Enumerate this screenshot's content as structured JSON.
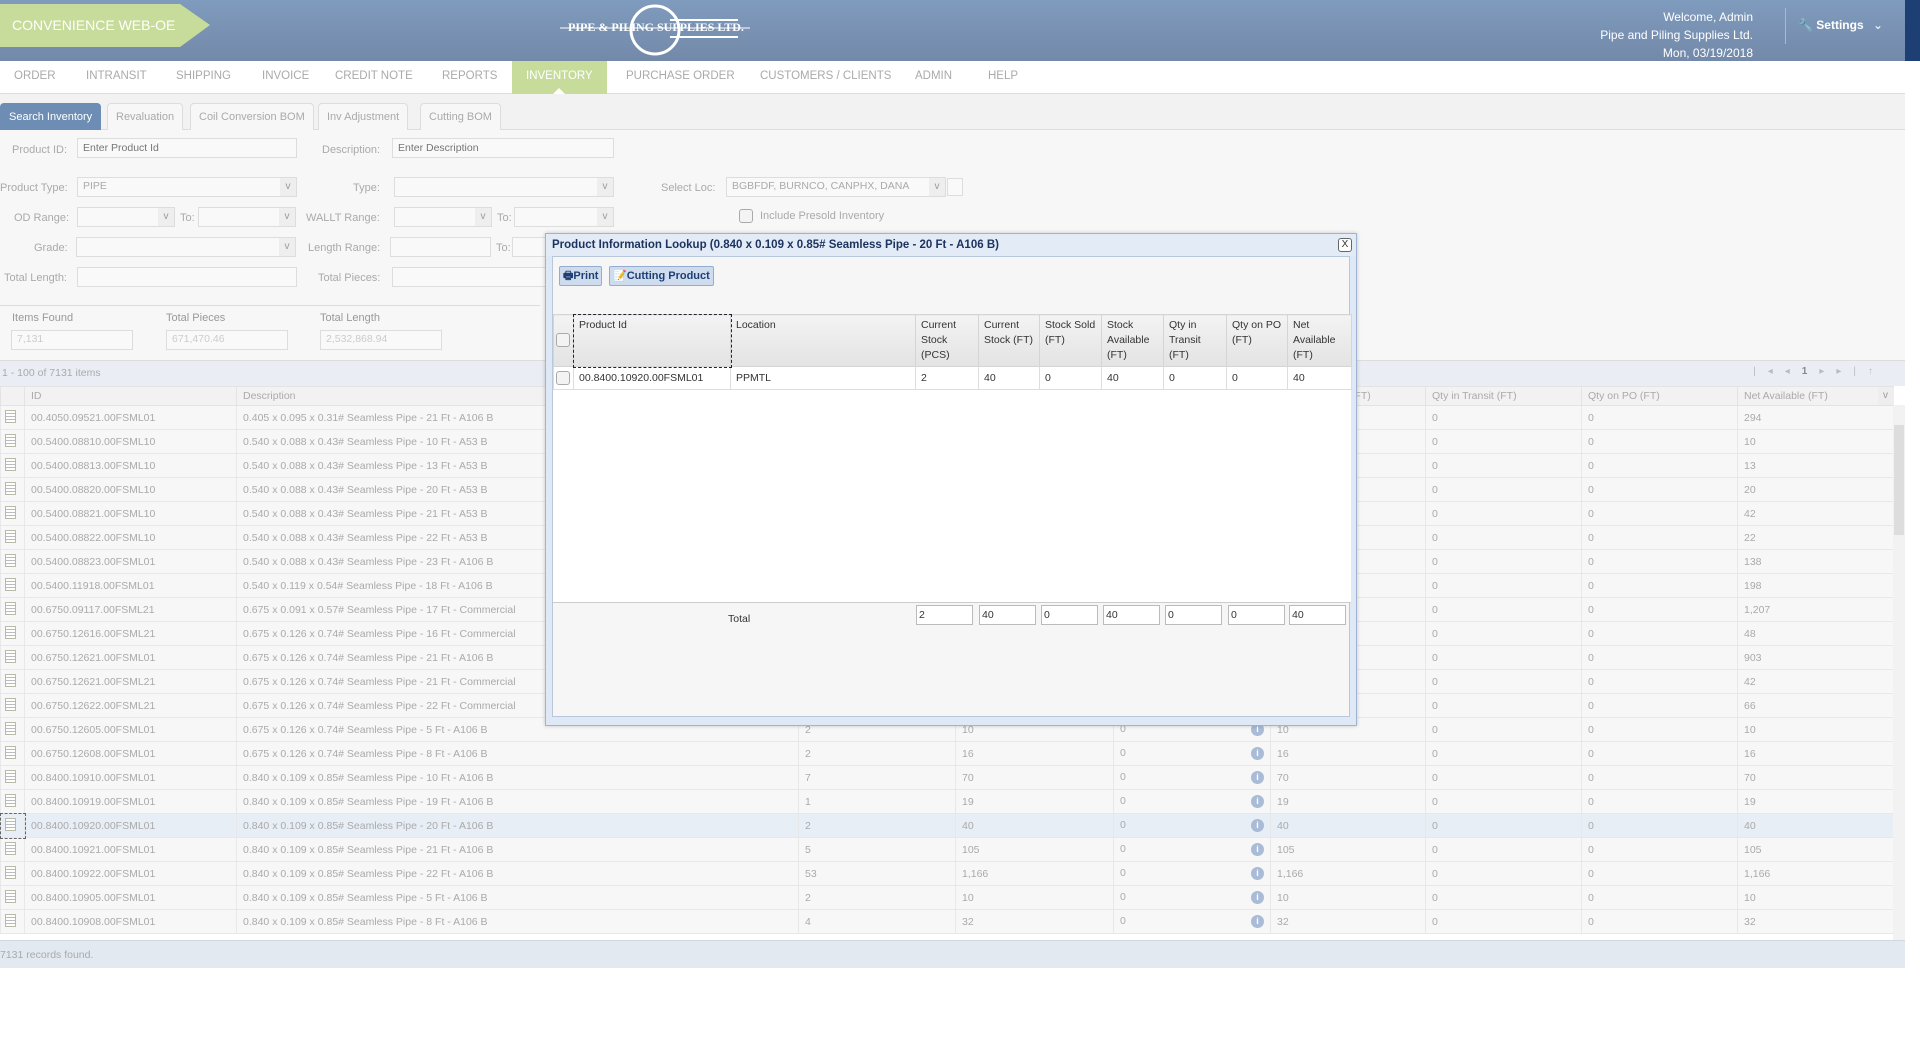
{
  "header": {
    "app_name": "CONVENIENCE WEB-OE",
    "logo_text": "PIPE & PILING SUPPLIES LTD.",
    "welcome": "Welcome, Admin",
    "company": "Pipe and Piling Supplies Ltd.",
    "date": "Mon, 03/19/2018",
    "settings_label": "Settings"
  },
  "nav": [
    "ORDER",
    "INTRANSIT",
    "SHIPPING",
    "INVOICE",
    "CREDIT NOTE",
    "REPORTS",
    "INVENTORY",
    "PURCHASE ORDER",
    "CUSTOMERS / CLIENTS",
    "ADMIN",
    "HELP"
  ],
  "nav_active": "INVENTORY",
  "subtabs": [
    "Search Inventory",
    "Revaluation",
    "Coil Conversion BOM",
    "Inv Adjustment",
    "Cutting BOM"
  ],
  "form": {
    "product_id_label": "Product ID:",
    "product_id_placeholder": "Enter Product Id",
    "description_label": "Description:",
    "description_placeholder": "Enter Description",
    "product_type_label": "Product Type:",
    "product_type_value": "PIPE",
    "type_label": "Type:",
    "select_loc_label": "Select Loc:",
    "select_loc_value": "BGBFDF,  BURNCO,  CANPHX,  DANA",
    "od_range_label": "OD Range:",
    "to_label": "To:",
    "wallt_range_label": "WALLT Range:",
    "include_presold_label": "Include Presold Inventory",
    "grade_label": "Grade:",
    "length_range_label": "Length Range:",
    "total_length_label": "Total Length:",
    "total_pieces_label": "Total Pieces:"
  },
  "summary": {
    "items_found_label": "Items Found",
    "items_found": "7,131",
    "total_pieces_label": "Total Pieces",
    "total_pieces": "671,470.46",
    "total_length_label": "Total Length",
    "total_length": "2,532,868.94"
  },
  "grid": {
    "range_info": "1 - 100 of 7131 items",
    "current_page": "1",
    "footer": "7131 records found.",
    "columns": [
      "ID",
      "Description",
      "Current Stock (PCS)",
      "Current Stock (FT)",
      "Stock Sold (FT)",
      "Stock Available (FT)",
      "Qty in Transit (FT)",
      "Qty on PO (FT)",
      "Net Available (FT)"
    ],
    "rows": [
      {
        "id": "00.4050.09521.00FSML01",
        "desc": "0.405 x 0.095 x 0.31# Seamless Pipe - 21 Ft - A106 B",
        "pcs": "",
        "ft": "",
        "sold": "",
        "avail": "",
        "transit": "0",
        "po": "0",
        "net": "294"
      },
      {
        "id": "00.5400.08810.00FSML10",
        "desc": "0.540 x 0.088 x 0.43# Seamless Pipe - 10 Ft - A53 B",
        "pcs": "",
        "ft": "",
        "sold": "",
        "avail": "",
        "transit": "0",
        "po": "0",
        "net": "10"
      },
      {
        "id": "00.5400.08813.00FSML10",
        "desc": "0.540 x 0.088 x 0.43# Seamless Pipe - 13 Ft - A53 B",
        "pcs": "",
        "ft": "",
        "sold": "",
        "avail": "",
        "transit": "0",
        "po": "0",
        "net": "13"
      },
      {
        "id": "00.5400.08820.00FSML10",
        "desc": "0.540 x 0.088 x 0.43# Seamless Pipe - 20 Ft - A53 B",
        "pcs": "",
        "ft": "",
        "sold": "",
        "avail": "",
        "transit": "0",
        "po": "0",
        "net": "20"
      },
      {
        "id": "00.5400.08821.00FSML10",
        "desc": "0.540 x 0.088 x 0.43# Seamless Pipe - 21 Ft - A53 B",
        "pcs": "",
        "ft": "",
        "sold": "",
        "avail": "",
        "transit": "0",
        "po": "0",
        "net": "42"
      },
      {
        "id": "00.5400.08822.00FSML10",
        "desc": "0.540 x 0.088 x 0.43# Seamless Pipe - 22 Ft - A53 B",
        "pcs": "",
        "ft": "",
        "sold": "",
        "avail": "",
        "transit": "0",
        "po": "0",
        "net": "22"
      },
      {
        "id": "00.5400.08823.00FSML01",
        "desc": "0.540 x 0.088 x 0.43# Seamless Pipe - 23 Ft - A106 B",
        "pcs": "",
        "ft": "",
        "sold": "",
        "avail": "",
        "transit": "0",
        "po": "0",
        "net": "138"
      },
      {
        "id": "00.5400.11918.00FSML01",
        "desc": "0.540 x 0.119 x 0.54# Seamless Pipe - 18 Ft - A106 B",
        "pcs": "",
        "ft": "",
        "sold": "",
        "avail": "",
        "transit": "0",
        "po": "0",
        "net": "198"
      },
      {
        "id": "00.6750.09117.00FSML21",
        "desc": "0.675 x 0.091 x 0.57# Seamless Pipe - 17 Ft - Commercial",
        "pcs": "",
        "ft": "",
        "sold": "",
        "avail": "",
        "transit": "0",
        "po": "0",
        "net": "1,207"
      },
      {
        "id": "00.6750.12616.00FSML21",
        "desc": "0.675 x 0.126 x 0.74# Seamless Pipe - 16 Ft - Commercial",
        "pcs": "",
        "ft": "",
        "sold": "",
        "avail": "",
        "transit": "0",
        "po": "0",
        "net": "48"
      },
      {
        "id": "00.6750.12621.00FSML01",
        "desc": "0.675 x 0.126 x 0.74# Seamless Pipe - 21 Ft - A106 B",
        "pcs": "",
        "ft": "",
        "sold": "",
        "avail": "",
        "transit": "0",
        "po": "0",
        "net": "903"
      },
      {
        "id": "00.6750.12621.00FSML21",
        "desc": "0.675 x 0.126 x 0.74# Seamless Pipe - 21 Ft - Commercial",
        "pcs": "",
        "ft": "",
        "sold": "",
        "avail": "",
        "transit": "0",
        "po": "0",
        "net": "42"
      },
      {
        "id": "00.6750.12622.00FSML21",
        "desc": "0.675 x 0.126 x 0.74# Seamless Pipe - 22 Ft - Commercial",
        "pcs": "",
        "ft": "",
        "sold": "",
        "avail": "",
        "transit": "0",
        "po": "0",
        "net": "66"
      },
      {
        "id": "00.6750.12605.00FSML01",
        "desc": "0.675 x 0.126 x 0.74# Seamless Pipe - 5 Ft - A106 B",
        "pcs": "2",
        "ft": "10",
        "sold": "0",
        "avail": "10",
        "transit": "0",
        "po": "0",
        "net": "10"
      },
      {
        "id": "00.6750.12608.00FSML01",
        "desc": "0.675 x 0.126 x 0.74# Seamless Pipe - 8 Ft - A106 B",
        "pcs": "2",
        "ft": "16",
        "sold": "0",
        "avail": "16",
        "transit": "0",
        "po": "0",
        "net": "16"
      },
      {
        "id": "00.8400.10910.00FSML01",
        "desc": "0.840 x 0.109 x 0.85# Seamless Pipe - 10 Ft - A106 B",
        "pcs": "7",
        "ft": "70",
        "sold": "0",
        "avail": "70",
        "transit": "0",
        "po": "0",
        "net": "70"
      },
      {
        "id": "00.8400.10919.00FSML01",
        "desc": "0.840 x 0.109 x 0.85# Seamless Pipe - 19 Ft - A106 B",
        "pcs": "1",
        "ft": "19",
        "sold": "0",
        "avail": "19",
        "transit": "0",
        "po": "0",
        "net": "19"
      },
      {
        "id": "00.8400.10920.00FSML01",
        "desc": "0.840 x 0.109 x 0.85# Seamless Pipe - 20 Ft - A106 B",
        "pcs": "2",
        "ft": "40",
        "sold": "0",
        "avail": "40",
        "transit": "0",
        "po": "0",
        "net": "40",
        "selected": true
      },
      {
        "id": "00.8400.10921.00FSML01",
        "desc": "0.840 x 0.109 x 0.85# Seamless Pipe - 21 Ft - A106 B",
        "pcs": "5",
        "ft": "105",
        "sold": "0",
        "avail": "105",
        "transit": "0",
        "po": "0",
        "net": "105"
      },
      {
        "id": "00.8400.10922.00FSML01",
        "desc": "0.840 x 0.109 x 0.85# Seamless Pipe - 22 Ft - A106 B",
        "pcs": "53",
        "ft": "1,166",
        "sold": "0",
        "avail": "1,166",
        "transit": "0",
        "po": "0",
        "net": "1,166"
      },
      {
        "id": "00.8400.10905.00FSML01",
        "desc": "0.840 x 0.109 x 0.85# Seamless Pipe - 5 Ft - A106 B",
        "pcs": "2",
        "ft": "10",
        "sold": "0",
        "avail": "10",
        "transit": "0",
        "po": "0",
        "net": "10"
      },
      {
        "id": "00.8400.10908.00FSML01",
        "desc": "0.840 x 0.109 x 0.85# Seamless Pipe - 8 Ft - A106 B",
        "pcs": "4",
        "ft": "32",
        "sold": "0",
        "avail": "32",
        "transit": "0",
        "po": "0",
        "net": "32"
      }
    ]
  },
  "modal": {
    "title": "Product Information Lookup (0.840 x 0.109 x 0.85# Seamless Pipe - 20 Ft - A106 B)",
    "close_label": "X",
    "print_label": "Print",
    "cutting_label": "Cutting Product",
    "columns": [
      "Product Id",
      "Location",
      "Current Stock (PCS)",
      "Current Stock (FT)",
      "Stock Sold (FT)",
      "Stock Available (FT)",
      "Qty in Transit (FT)",
      "Qty on PO (FT)",
      "Net Available (FT)"
    ],
    "rows": [
      [
        "00.8400.10920.00FSML01",
        "PPMTL",
        "2",
        "40",
        "0",
        "40",
        "0",
        "0",
        "40"
      ]
    ],
    "total_label": "Total",
    "totals": [
      "2",
      "40",
      "0",
      "40",
      "0",
      "0",
      "40"
    ]
  }
}
